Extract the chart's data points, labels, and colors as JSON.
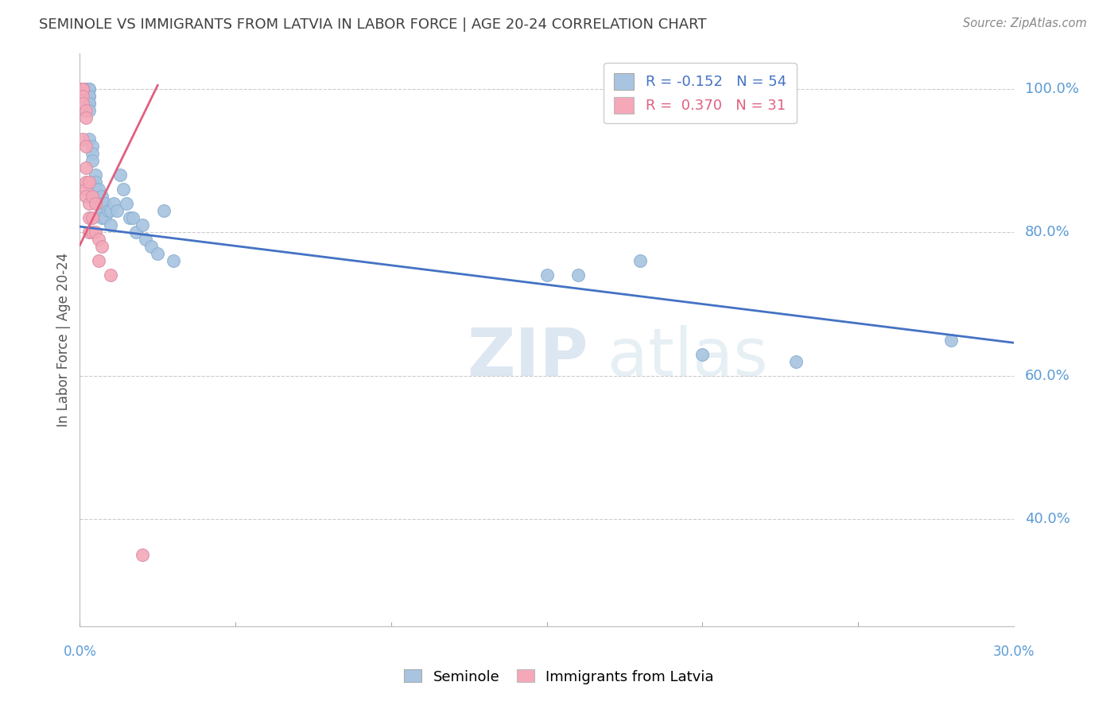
{
  "title": "SEMINOLE VS IMMIGRANTS FROM LATVIA IN LABOR FORCE | AGE 20-24 CORRELATION CHART",
  "source": "Source: ZipAtlas.com",
  "ylabel": "In Labor Force | Age 20-24",
  "legend_entries": [
    {
      "label": "R = -0.152   N = 54",
      "color": "#a8c4e0"
    },
    {
      "label": "R =  0.370   N = 31",
      "color": "#f4a8b8"
    }
  ],
  "legend_labels": [
    "Seminole",
    "Immigrants from Latvia"
  ],
  "blue_color": "#a8c4e0",
  "pink_color": "#f4a8b8",
  "trendline_blue": "#4472c4",
  "trendline_pink": "#e06080",
  "axis_label_color": "#5b9bd5",
  "watermark_color": "#d0e4f0",
  "seminole_x": [
    0.001,
    0.001,
    0.001,
    0.002,
    0.002,
    0.002,
    0.002,
    0.003,
    0.003,
    0.003,
    0.003,
    0.003,
    0.003,
    0.003,
    0.003,
    0.004,
    0.004,
    0.004,
    0.004,
    0.005,
    0.005,
    0.005,
    0.005,
    0.006,
    0.006,
    0.007,
    0.007,
    0.007,
    0.007,
    0.008,
    0.008,
    0.009,
    0.01,
    0.01,
    0.011,
    0.012,
    0.013,
    0.014,
    0.015,
    0.016,
    0.017,
    0.018,
    0.02,
    0.021,
    0.023,
    0.025,
    0.027,
    0.03,
    0.15,
    0.16,
    0.18,
    0.2,
    0.23,
    0.28
  ],
  "seminole_y": [
    1.0,
    1.0,
    1.0,
    1.0,
    1.0,
    1.0,
    1.0,
    1.0,
    1.0,
    0.99,
    0.99,
    0.98,
    0.98,
    0.97,
    0.93,
    0.92,
    0.91,
    0.9,
    0.87,
    0.88,
    0.87,
    0.86,
    0.85,
    0.86,
    0.84,
    0.85,
    0.84,
    0.83,
    0.82,
    0.84,
    0.82,
    0.83,
    0.83,
    0.81,
    0.84,
    0.83,
    0.88,
    0.86,
    0.84,
    0.82,
    0.82,
    0.8,
    0.81,
    0.79,
    0.78,
    0.77,
    0.83,
    0.76,
    0.74,
    0.74,
    0.76,
    0.63,
    0.62,
    0.65
  ],
  "latvia_x": [
    0.001,
    0.001,
    0.001,
    0.001,
    0.001,
    0.001,
    0.001,
    0.001,
    0.001,
    0.001,
    0.002,
    0.002,
    0.002,
    0.002,
    0.002,
    0.002,
    0.002,
    0.003,
    0.003,
    0.003,
    0.003,
    0.004,
    0.004,
    0.004,
    0.005,
    0.005,
    0.006,
    0.006,
    0.007,
    0.01,
    0.02
  ],
  "latvia_y": [
    1.0,
    1.0,
    1.0,
    1.0,
    1.0,
    1.0,
    1.0,
    0.99,
    0.98,
    0.93,
    0.97,
    0.96,
    0.92,
    0.89,
    0.87,
    0.86,
    0.85,
    0.87,
    0.84,
    0.82,
    0.8,
    0.85,
    0.82,
    0.8,
    0.84,
    0.8,
    0.79,
    0.76,
    0.78,
    0.74,
    0.35
  ],
  "xlim": [
    0.0,
    0.3
  ],
  "ylim": [
    0.25,
    1.05
  ],
  "yticks": [
    0.4,
    0.6,
    0.8,
    1.0
  ],
  "xtick_positions": [
    0.0,
    0.05,
    0.1,
    0.15,
    0.2,
    0.25,
    0.3
  ],
  "blue_trendline_x": [
    0.0,
    0.3
  ],
  "blue_trendline_y": [
    0.808,
    0.646
  ],
  "pink_trendline_x": [
    0.0,
    0.025
  ],
  "pink_trendline_y": [
    0.782,
    1.005
  ]
}
